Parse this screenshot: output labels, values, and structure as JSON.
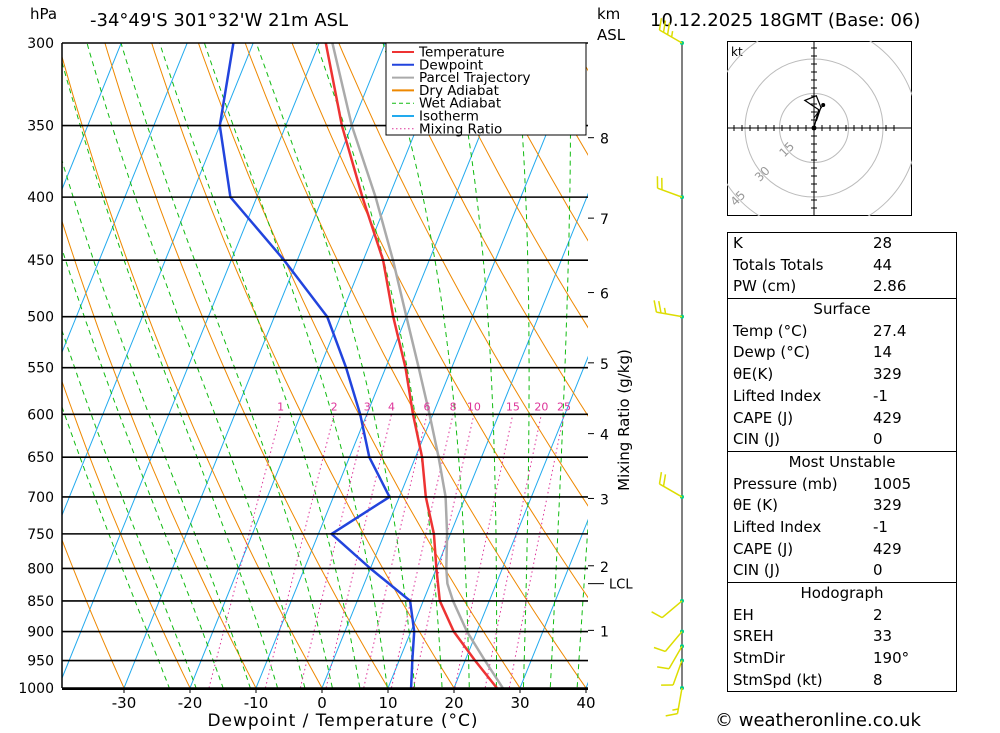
{
  "header": {
    "hpa_label": "hPa",
    "location": "-34°49'S  301°32'W  21m  ASL",
    "km_label": "km",
    "asl_label": "ASL",
    "datetime": "10.12.2025  18GMT  (Base: 06)"
  },
  "chart_data": {
    "type": "skew-t",
    "xlabel": "Dewpoint / Temperature (°C)",
    "ylabel_left": "hPa",
    "ylabel_right": "Mixing Ratio (g/kg)",
    "x_ticks": [
      "-30",
      "-20",
      "-10",
      "0",
      "10",
      "20",
      "30",
      "40"
    ],
    "x_tick_values": [
      -30,
      -20,
      -10,
      0,
      10,
      20,
      30,
      40
    ],
    "pressure_levels": [
      300,
      350,
      400,
      450,
      500,
      550,
      600,
      650,
      700,
      750,
      800,
      850,
      900,
      950,
      1000
    ],
    "km_ticks": [
      {
        "label": "8",
        "p": 358
      },
      {
        "label": "7",
        "p": 416
      },
      {
        "label": "6",
        "p": 478
      },
      {
        "label": "5",
        "p": 545
      },
      {
        "label": "4",
        "p": 622
      },
      {
        "label": "3",
        "p": 702
      },
      {
        "label": "2",
        "p": 796
      },
      {
        "label": "1",
        "p": 898
      }
    ],
    "lcl_label": "LCL",
    "lcl_pressure": 823,
    "mixing_ratio_labels": [
      "1",
      "2",
      "3",
      "4",
      "6",
      "8",
      "10",
      "15",
      "20",
      "25"
    ],
    "legend": [
      {
        "name": "Temperature",
        "color": "#ee3333",
        "style": "solid"
      },
      {
        "name": "Dewpoint",
        "color": "#2244dd",
        "style": "solid"
      },
      {
        "name": "Parcel Trajectory",
        "color": "#aaaaaa",
        "style": "solid"
      },
      {
        "name": "Dry Adiabat",
        "color": "#ee8800",
        "style": "solid"
      },
      {
        "name": "Wet Adiabat",
        "color": "#11bb11",
        "style": "dashed"
      },
      {
        "name": "Isotherm",
        "color": "#22aaee",
        "style": "solid"
      },
      {
        "name": "Mixing Ratio",
        "color": "#dd3399",
        "style": "dotted"
      }
    ],
    "temperature": [
      [
        1000,
        26.5
      ],
      [
        950,
        21.5
      ],
      [
        900,
        16.5
      ],
      [
        850,
        12.5
      ],
      [
        800,
        10
      ],
      [
        750,
        7.5
      ],
      [
        700,
        4
      ],
      [
        650,
        1
      ],
      [
        600,
        -3
      ],
      [
        550,
        -7
      ],
      [
        500,
        -12
      ],
      [
        450,
        -17
      ],
      [
        400,
        -24
      ],
      [
        350,
        -31.5
      ],
      [
        300,
        -39
      ]
    ],
    "dewpoint": [
      [
        1000,
        13.5
      ],
      [
        950,
        12
      ],
      [
        900,
        10.5
      ],
      [
        850,
        8
      ],
      [
        800,
        0
      ],
      [
        750,
        -8
      ],
      [
        700,
        -1.5
      ],
      [
        650,
        -7
      ],
      [
        600,
        -11
      ],
      [
        550,
        -16
      ],
      [
        500,
        -22
      ],
      [
        450,
        -32
      ],
      [
        400,
        -44
      ],
      [
        350,
        -50
      ],
      [
        300,
        -53
      ]
    ],
    "parcel": [
      [
        1000,
        27.4
      ],
      [
        950,
        23
      ],
      [
        900,
        18.5
      ],
      [
        850,
        14.5
      ],
      [
        823,
        12.6
      ],
      [
        800,
        11.5
      ],
      [
        750,
        9.5
      ],
      [
        700,
        7
      ],
      [
        650,
        3.5
      ],
      [
        600,
        -0.5
      ],
      [
        550,
        -5
      ],
      [
        500,
        -10
      ],
      [
        450,
        -15.5
      ],
      [
        400,
        -22
      ],
      [
        350,
        -30
      ],
      [
        300,
        -38
      ]
    ],
    "wind_barbs": [
      {
        "p": 1000,
        "dir": 190,
        "kt": 8
      },
      {
        "p": 950,
        "dir": 200,
        "kt": 10
      },
      {
        "p": 925,
        "dir": 210,
        "kt": 10
      },
      {
        "p": 900,
        "dir": 220,
        "kt": 10
      },
      {
        "p": 850,
        "dir": 230,
        "kt": 10
      },
      {
        "p": 700,
        "dir": 300,
        "kt": 20
      },
      {
        "p": 500,
        "dir": 280,
        "kt": 15
      },
      {
        "p": 400,
        "dir": 290,
        "kt": 20
      },
      {
        "p": 300,
        "dir": 300,
        "kt": 25
      }
    ]
  },
  "hodograph": {
    "unit_label": "kt",
    "ring_labels": [
      "15",
      "30",
      "45"
    ],
    "trace": [
      [
        0,
        0
      ],
      [
        2,
        8
      ],
      [
        -4,
        12
      ],
      [
        1,
        14
      ],
      [
        3,
        9
      ],
      [
        1,
        3
      ],
      [
        8,
        20
      ]
    ]
  },
  "indices": {
    "top": [
      {
        "label": "K",
        "value": "28"
      },
      {
        "label": "Totals Totals",
        "value": "44"
      },
      {
        "label": "PW (cm)",
        "value": "2.86"
      }
    ],
    "surface": {
      "title": "Surface",
      "rows": [
        {
          "label": "Temp (°C)",
          "value": "27.4"
        },
        {
          "label": "Dewp (°C)",
          "value": "14"
        },
        {
          "label": "θE(K)",
          "value": "329"
        },
        {
          "label": "Lifted Index",
          "value": "-1"
        },
        {
          "label": "CAPE (J)",
          "value": "429"
        },
        {
          "label": "CIN (J)",
          "value": "0"
        }
      ]
    },
    "most_unstable": {
      "title": "Most Unstable",
      "rows": [
        {
          "label": "Pressure (mb)",
          "value": "1005"
        },
        {
          "label": "θE (K)",
          "value": "329"
        },
        {
          "label": "Lifted Index",
          "value": "-1"
        },
        {
          "label": "CAPE (J)",
          "value": "429"
        },
        {
          "label": "CIN (J)",
          "value": "0"
        }
      ]
    },
    "hodograph_params": {
      "title": "Hodograph",
      "rows": [
        {
          "label": "EH",
          "value": "2"
        },
        {
          "label": "SREH",
          "value": "33"
        },
        {
          "label": "StmDir",
          "value": "190°"
        },
        {
          "label": "StmSpd (kt)",
          "value": "8"
        }
      ]
    }
  },
  "copyright": "© weatheronline.co.uk",
  "colors": {
    "temperature": "#ee3333",
    "dewpoint": "#2244dd",
    "parcel": "#aaaaaa",
    "dry_adiabat": "#ee8800",
    "wet_adiabat": "#11bb11",
    "isotherm": "#22aaee",
    "mixing_ratio": "#dd3399",
    "wind": "#dddd00",
    "wind_dot": "#00cc88"
  }
}
